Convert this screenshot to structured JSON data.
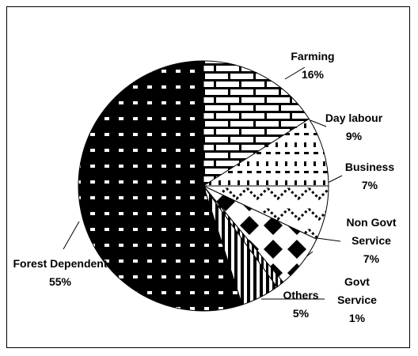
{
  "chart_data": {
    "type": "pie",
    "categories": [
      "Farming",
      "Day labour",
      "Business",
      "Non Govt Service",
      "Govt Service",
      "Others",
      "Forest Dependent"
    ],
    "values": [
      16,
      9,
      7,
      7,
      1,
      5,
      55
    ],
    "value_labels": [
      "16%",
      "9%",
      "7%",
      "7%",
      "1%",
      "5%",
      "55%"
    ]
  }
}
